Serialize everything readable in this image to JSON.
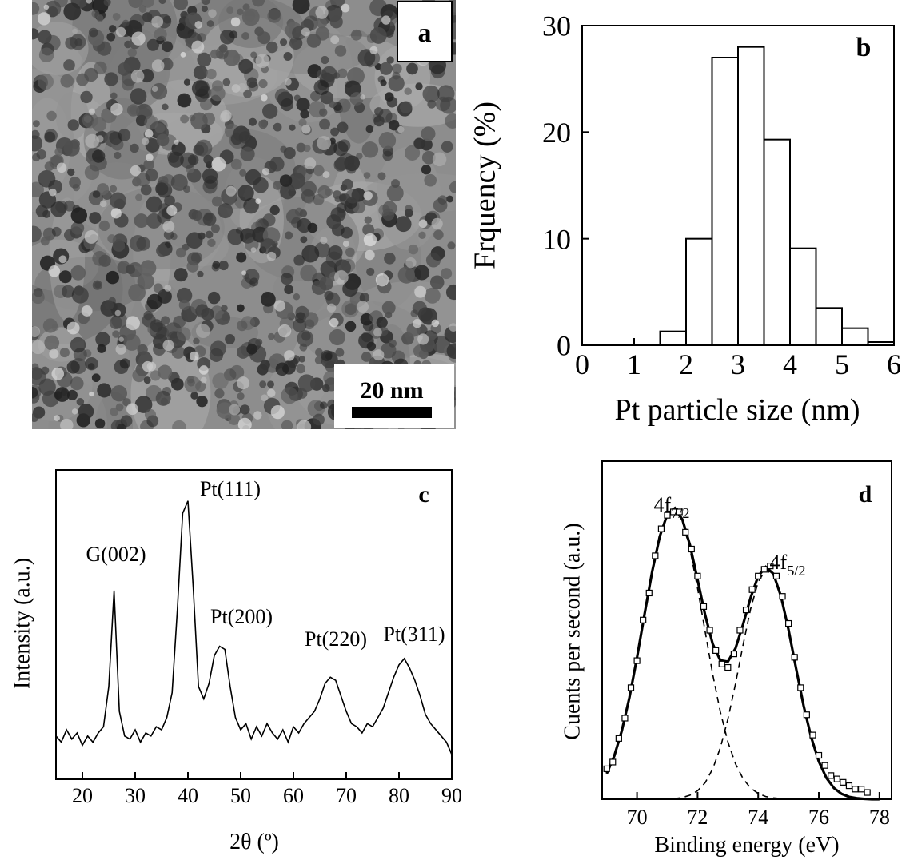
{
  "image_panel": {
    "label": "a",
    "scale_bar": "20 nm"
  },
  "chart_data": [
    {
      "type": "histogram",
      "panel_label": "b",
      "x_label": "Pt particle size (nm)",
      "y_label": "Frquency (%)",
      "bins": [
        0,
        0.5,
        1,
        1.5,
        2,
        2.5,
        3,
        3.5,
        4,
        4.5,
        5,
        5.5,
        6
      ],
      "values": [
        0,
        0,
        0,
        1.3,
        10,
        27,
        28,
        19.3,
        9.1,
        3.5,
        1.6,
        0.3
      ],
      "color": "#ffffff",
      "edge_color": "#000000",
      "xlim": [
        0,
        6
      ],
      "ylim": [
        0,
        30
      ],
      "xticks": [
        0,
        1,
        2,
        3,
        4,
        5,
        6
      ],
      "yticks": [
        0,
        10,
        20,
        30
      ]
    },
    {
      "type": "line",
      "panel_label": "c",
      "x_label": "2θ (º)",
      "y_label": "Intensity (a.u.)",
      "x": [
        15,
        16,
        17,
        18,
        19,
        20,
        21,
        22,
        23,
        24,
        25,
        26,
        27,
        28,
        29,
        30,
        31,
        32,
        33,
        34,
        35,
        36,
        37,
        38,
        39,
        40,
        41,
        42,
        43,
        44,
        45,
        46,
        47,
        48,
        49,
        50,
        51,
        52,
        53,
        54,
        55,
        56,
        57,
        58,
        59,
        60,
        61,
        62,
        63,
        64,
        65,
        66,
        67,
        68,
        69,
        70,
        71,
        72,
        73,
        74,
        75,
        76,
        77,
        78,
        79,
        80,
        81,
        82,
        83,
        84,
        85,
        86,
        87,
        88,
        89,
        90
      ],
      "values": [
        0.14,
        0.12,
        0.16,
        0.13,
        0.15,
        0.11,
        0.14,
        0.12,
        0.15,
        0.17,
        0.3,
        0.61,
        0.22,
        0.14,
        0.13,
        0.16,
        0.12,
        0.15,
        0.14,
        0.17,
        0.16,
        0.2,
        0.28,
        0.55,
        0.86,
        0.9,
        0.62,
        0.3,
        0.26,
        0.31,
        0.4,
        0.43,
        0.42,
        0.3,
        0.2,
        0.16,
        0.18,
        0.13,
        0.17,
        0.14,
        0.18,
        0.15,
        0.13,
        0.16,
        0.12,
        0.17,
        0.15,
        0.18,
        0.2,
        0.22,
        0.26,
        0.31,
        0.33,
        0.32,
        0.27,
        0.22,
        0.18,
        0.17,
        0.15,
        0.18,
        0.17,
        0.2,
        0.23,
        0.28,
        0.33,
        0.37,
        0.39,
        0.36,
        0.32,
        0.27,
        0.21,
        0.18,
        0.16,
        0.14,
        0.12,
        0.08
      ],
      "color": "#000000",
      "annotations": [
        {
          "text": "G(002)"
        },
        {
          "text": "Pt(111)"
        },
        {
          "text": "Pt(200)"
        },
        {
          "text": "Pt(220)"
        },
        {
          "text": "Pt(311)"
        }
      ],
      "xlim": [
        15,
        90
      ],
      "ylim": [
        0,
        1
      ],
      "xticks": [
        20,
        30,
        40,
        50,
        60,
        70,
        80,
        90
      ]
    },
    {
      "type": "line",
      "panel_label": "d",
      "x_label": "Binding energy (eV)",
      "y_label": "Cuents per second (a.u.)",
      "series": [
        {
          "style": "markers",
          "color": "#000000",
          "x": [
            69,
            69.2,
            69.4,
            69.6,
            69.8,
            70,
            70.2,
            70.4,
            70.6,
            70.8,
            71,
            71.2,
            71.4,
            71.6,
            71.8,
            72,
            72.2,
            72.4,
            72.6,
            72.8,
            73,
            73.2,
            73.4,
            73.6,
            73.8,
            74,
            74.2,
            74.4,
            74.6,
            74.8,
            75,
            75.2,
            75.4,
            75.6,
            75.8,
            76,
            76.2,
            76.4,
            76.6,
            76.8,
            77,
            77.2,
            77.4,
            77.6
          ],
          "values": [
            0.09,
            0.11,
            0.18,
            0.24,
            0.33,
            0.41,
            0.53,
            0.61,
            0.72,
            0.8,
            0.84,
            0.85,
            0.85,
            0.79,
            0.74,
            0.66,
            0.57,
            0.5,
            0.44,
            0.4,
            0.39,
            0.43,
            0.5,
            0.56,
            0.62,
            0.66,
            0.68,
            0.69,
            0.66,
            0.6,
            0.52,
            0.42,
            0.33,
            0.25,
            0.19,
            0.13,
            0.1,
            0.07,
            0.06,
            0.05,
            0.04,
            0.03,
            0.03,
            0.02
          ]
        },
        {
          "style": "dashed",
          "color": "#000000",
          "x": [
            69,
            69.25,
            69.5,
            69.75,
            70,
            70.25,
            70.5,
            70.75,
            71,
            71.25,
            71.5,
            71.75,
            72,
            72.25,
            72.5,
            72.75,
            73,
            73.25,
            73.5,
            73.75,
            74,
            74.25,
            74.5,
            74.75,
            75,
            75.25,
            75.5,
            75.75,
            76,
            76.25,
            76.5,
            76.75,
            77,
            77.25,
            77.5,
            77.75,
            78
          ],
          "values": [
            0.076,
            0.128,
            0.203,
            0.301,
            0.419,
            0.548,
            0.673,
            0.777,
            0.843,
            0.859,
            0.822,
            0.739,
            0.624,
            0.496,
            0.369,
            0.259,
            0.17,
            0.105,
            0.061,
            0.033,
            0.017,
            0.008,
            0.004,
            0.002,
            0.001,
            0,
            0,
            0,
            0,
            0,
            0,
            0,
            0,
            0,
            0,
            0,
            0
          ]
        },
        {
          "style": "dashed",
          "color": "#000000",
          "x": [
            69,
            69.25,
            69.5,
            69.75,
            70,
            70.25,
            70.5,
            70.75,
            71,
            71.25,
            71.5,
            71.75,
            72,
            72.25,
            72.5,
            72.75,
            73,
            73.25,
            73.5,
            73.75,
            74,
            74.25,
            74.5,
            74.75,
            75,
            75.25,
            75.5,
            75.75,
            76,
            76.25,
            76.5,
            76.75,
            77,
            77.25,
            77.5,
            77.75,
            78
          ],
          "values": [
            0,
            0,
            0,
            0,
            0,
            0,
            0,
            0,
            0,
            0.002,
            0.005,
            0.012,
            0.025,
            0.049,
            0.09,
            0.152,
            0.237,
            0.341,
            0.456,
            0.563,
            0.643,
            0.679,
            0.663,
            0.599,
            0.501,
            0.387,
            0.276,
            0.183,
            0.112,
            0.063,
            0.033,
            0.016,
            0.007,
            0.003,
            0.001,
            0,
            0
          ]
        },
        {
          "style": "solid",
          "color": "#000000",
          "x": [
            69,
            69.25,
            69.5,
            69.75,
            70,
            70.25,
            70.5,
            70.75,
            71,
            71.25,
            71.5,
            71.75,
            72,
            72.25,
            72.5,
            72.75,
            73,
            73.25,
            73.5,
            73.75,
            74,
            74.25,
            74.5,
            74.75,
            75,
            75.25,
            75.5,
            75.75,
            76,
            76.25,
            76.5,
            76.75,
            77,
            77.25,
            77.5,
            77.75,
            78
          ],
          "values": [
            0.076,
            0.128,
            0.203,
            0.301,
            0.419,
            0.548,
            0.673,
            0.777,
            0.843,
            0.861,
            0.827,
            0.751,
            0.649,
            0.545,
            0.459,
            0.411,
            0.407,
            0.446,
            0.517,
            0.596,
            0.66,
            0.687,
            0.667,
            0.601,
            0.502,
            0.387,
            0.276,
            0.183,
            0.112,
            0.063,
            0.033,
            0.016,
            0.007,
            0.003,
            0.001,
            0,
            0
          ]
        }
      ],
      "annotations": [
        {
          "text": "4f",
          "sub": "7/2"
        },
        {
          "text": "4f",
          "sub": "5/2"
        }
      ],
      "xlim": [
        68.85,
        78.4
      ],
      "ylim": [
        0,
        1
      ],
      "xticks": [
        70,
        72,
        74,
        76,
        78
      ]
    }
  ]
}
